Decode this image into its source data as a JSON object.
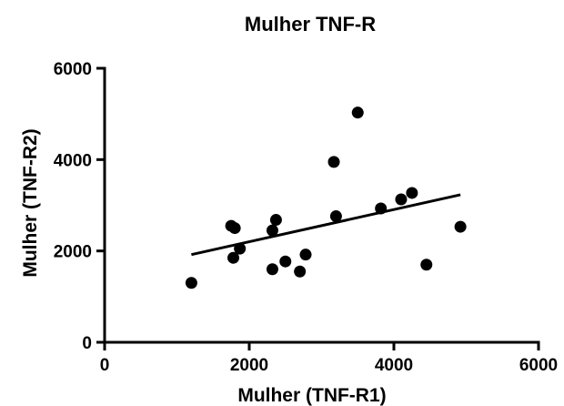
{
  "chart_data": {
    "type": "scatter",
    "title": "Mulher TNF-R",
    "xlabel": "Mulher (TNF-R1)",
    "ylabel": "Mulher (TNF-R2)",
    "xlim": [
      0,
      6000
    ],
    "ylim": [
      0,
      6000
    ],
    "xticks": [
      0,
      2000,
      4000,
      6000
    ],
    "yticks": [
      0,
      2000,
      4000,
      6000
    ],
    "x_tick_labels": [
      "0",
      "2000",
      "4000",
      "6000"
    ],
    "y_tick_labels": [
      "0",
      "2000",
      "4000",
      "6000"
    ],
    "grid": false,
    "legend": false,
    "marker_color": "#000000",
    "series": [
      {
        "points": [
          {
            "x": 1200,
            "y": 1300
          },
          {
            "x": 1750,
            "y": 2550
          },
          {
            "x": 1800,
            "y": 2500
          },
          {
            "x": 1780,
            "y": 1850
          },
          {
            "x": 1870,
            "y": 2050
          },
          {
            "x": 2320,
            "y": 2450
          },
          {
            "x": 2370,
            "y": 2680
          },
          {
            "x": 2320,
            "y": 1600
          },
          {
            "x": 2500,
            "y": 1770
          },
          {
            "x": 2700,
            "y": 1550
          },
          {
            "x": 2780,
            "y": 1920
          },
          {
            "x": 3170,
            "y": 3950
          },
          {
            "x": 3200,
            "y": 2760
          },
          {
            "x": 3500,
            "y": 5030
          },
          {
            "x": 3820,
            "y": 2930
          },
          {
            "x": 4100,
            "y": 3130
          },
          {
            "x": 4250,
            "y": 3270
          },
          {
            "x": 4450,
            "y": 1700
          },
          {
            "x": 4920,
            "y": 2530
          }
        ]
      }
    ],
    "trendline": {
      "x": [
        1200,
        4920
      ],
      "y": [
        1920,
        3230
      ]
    }
  }
}
